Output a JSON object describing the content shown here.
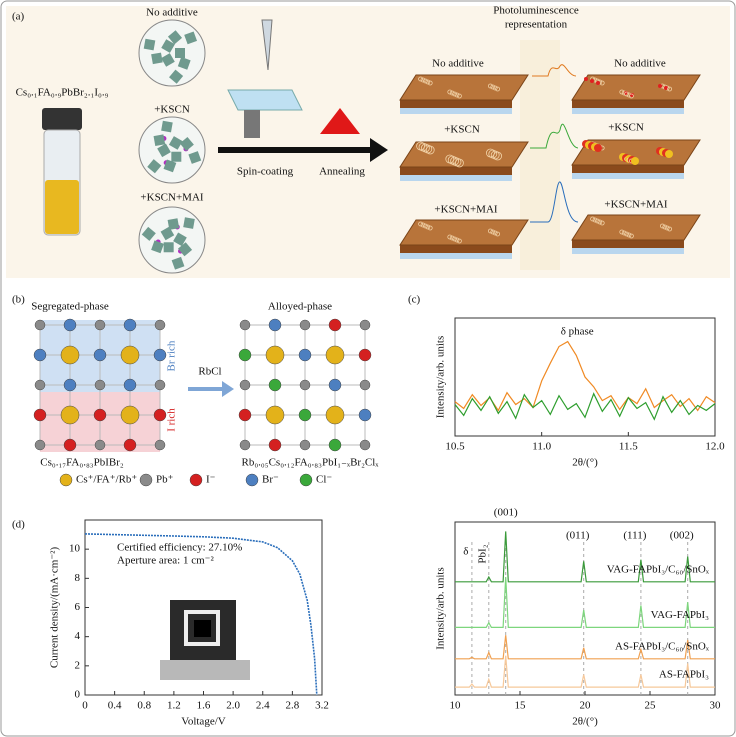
{
  "panel_labels": [
    "(a)",
    "(b)",
    "(c)",
    "(d)"
  ],
  "panel_a": {
    "precursor": "Cs₀.₁FA₀.₉PbBr₂.₁I₀.₉",
    "solutions": [
      "No additive",
      "+KSCN",
      "+KSCN+MAI"
    ],
    "steps": [
      "Spin-coating",
      "Annealing"
    ],
    "pl_title": [
      "Photoluminescence",
      "representation"
    ],
    "films_left": [
      "No additive",
      "+KSCN",
      "+KSCN+MAI"
    ],
    "films_right": [
      "No additive",
      "+KSCN",
      "+KSCN+MAI"
    ]
  },
  "panel_b": {
    "left_title": "Segregated-phase",
    "right_title": "Alloyed-phase",
    "br_rich": "Br rich",
    "i_rich": "I rich",
    "arrow": "RbCl",
    "left_formula": "Cs₀.₁₇FA₀.₈₃PbIBr₂",
    "right_formula": "Rb₀.₀₅Cs₀.₁₂FA₀.₈₃PbI₁₋ₓBr₂Clₓ",
    "legend": [
      {
        "label": "Cs⁺/FA⁺/Rb⁺",
        "color": "#e3b21a"
      },
      {
        "label": "Pb⁺",
        "color": "#8a8a8a"
      },
      {
        "label": "I⁻",
        "color": "#d42020"
      },
      {
        "label": "Br⁻",
        "color": "#4d7fc0"
      },
      {
        "label": "Cl⁻",
        "color": "#3aa83a"
      }
    ]
  },
  "chart_data": [
    {
      "type": "line",
      "annotation": "δ phase",
      "xlabel": "2θ/(°)",
      "ylabel": "Intensity/arb. units",
      "x": [
        10.5,
        10.55,
        10.6,
        10.65,
        10.7,
        10.75,
        10.8,
        10.85,
        10.9,
        10.95,
        11.0,
        11.05,
        11.1,
        11.15,
        11.2,
        11.25,
        11.3,
        11.35,
        11.4,
        11.45,
        11.5,
        11.55,
        11.6,
        11.65,
        11.7,
        11.75,
        11.8,
        11.85,
        11.9,
        11.95,
        12.0
      ],
      "xlim": [
        10.5,
        12.0
      ],
      "ylim": [
        0,
        12
      ],
      "xticks": [
        10.5,
        {
          "value": 11,
          "label": "11.0"
        },
        11.5,
        {
          "value": 12,
          "label": "12.0"
        }
      ],
      "series": [
        {
          "color": "#f08a24",
          "values": [
            3.5,
            2.8,
            4.2,
            3.1,
            3.9,
            2.6,
            4.4,
            3.2,
            3.8,
            2.9,
            5.6,
            7.4,
            9.1,
            9.6,
            8.2,
            6.0,
            5.0,
            3.6,
            4.1,
            2.7,
            3.9,
            3.3,
            4.8,
            2.9,
            3.6,
            4.2,
            3.0,
            3.8,
            2.6,
            4.0,
            3.4
          ]
        },
        {
          "color": "#2e9e2e",
          "values": [
            3.2,
            2.1,
            3.8,
            2.6,
            4.0,
            2.3,
            3.5,
            1.8,
            4.2,
            2.9,
            3.6,
            2.2,
            4.1,
            2.7,
            3.3,
            1.9,
            4.3,
            2.5,
            3.7,
            2.0,
            3.9,
            2.8,
            3.4,
            1.7,
            4.0,
            2.4,
            3.6,
            2.2,
            3.1,
            2.6,
            3.3
          ]
        }
      ]
    },
    {
      "type": "line",
      "xlabel": "2θ/(°)",
      "ylabel": "Intensity/arb. units",
      "x": [
        10,
        11.1,
        11.3,
        11.5,
        12.4,
        12.6,
        12.8,
        13.7,
        13.9,
        14.1,
        19.7,
        19.9,
        20.1,
        24.1,
        24.3,
        24.5,
        27.7,
        27.9,
        28.1,
        30
      ],
      "xlim": [
        10,
        30
      ],
      "ylim": [
        0,
        11
      ],
      "xticks": [
        10,
        15,
        20,
        25,
        30
      ],
      "peaks": [
        {
          "label": "δ",
          "x": 11.3
        },
        {
          "label": "PbI₂",
          "x": 12.6
        },
        {
          "label": "(001)",
          "x": 13.9
        },
        {
          "label": "(011)",
          "x": 19.9
        },
        {
          "label": "(111)",
          "x": 24.3
        },
        {
          "label": "(002)",
          "x": 27.9
        }
      ],
      "series": [
        {
          "name": "VAG-FAPbI₃/C₆₀/SnOₓ",
          "color": "#3a9a3a",
          "values": [
            7.2,
            7.2,
            7.2,
            7.2,
            7.2,
            7.5,
            7.2,
            7.2,
            10.4,
            7.2,
            7.2,
            8.5,
            7.2,
            7.2,
            8.6,
            7.2,
            7.2,
            8.8,
            7.2,
            7.2
          ]
        },
        {
          "name": "VAG-FAPbI₃",
          "color": "#7dd67d",
          "values": [
            4.3,
            4.3,
            4.3,
            4.3,
            4.3,
            4.6,
            4.3,
            4.3,
            7.5,
            4.3,
            4.3,
            5.4,
            4.3,
            4.3,
            5.7,
            4.3,
            4.3,
            5.9,
            4.3,
            4.3
          ]
        },
        {
          "name": "AS-FAPbI₃/C₆₀/SnOₓ",
          "color": "#f0a050",
          "values": [
            2.3,
            2.3,
            2.4,
            2.3,
            2.3,
            2.7,
            2.3,
            2.3,
            3.8,
            2.3,
            2.3,
            3.0,
            2.3,
            2.3,
            2.9,
            2.3,
            2.3,
            3.5,
            2.3,
            2.3
          ]
        },
        {
          "name": "AS-FAPbI₃",
          "color": "#f6c89a",
          "values": [
            0.5,
            0.5,
            0.7,
            0.5,
            0.5,
            1.0,
            0.5,
            0.5,
            2.5,
            0.5,
            0.5,
            1.3,
            0.5,
            0.5,
            1.3,
            0.5,
            0.5,
            2.0,
            0.5,
            0.5
          ]
        }
      ]
    },
    {
      "type": "line",
      "xlabel": "Voltage/V",
      "ylabel": "Current density/(mA·cm⁻²)",
      "annotations": [
        "Certified efficiency: 27.10%",
        "Aperture area: 1 cm⁻²"
      ],
      "x": [
        0,
        0.4,
        0.8,
        1.2,
        1.6,
        2.0,
        2.4,
        2.6,
        2.8,
        2.9,
        3.0,
        3.05,
        3.1,
        3.13
      ],
      "xlim": [
        0,
        3.2
      ],
      "ylim": [
        0,
        12
      ],
      "xticks": [
        0,
        0.4,
        0.8,
        1.2,
        1.6,
        {
          "value": 2,
          "label": "2.0"
        },
        2.4,
        2.8,
        3.2
      ],
      "yticks": [
        0,
        2,
        4,
        6,
        8,
        10
      ],
      "series": [
        {
          "color": "#2a6ebb",
          "values": [
            11.05,
            11.0,
            10.95,
            10.9,
            10.85,
            10.75,
            10.5,
            10.1,
            9.2,
            8.3,
            6.5,
            4.8,
            2.5,
            0
          ]
        }
      ]
    }
  ]
}
